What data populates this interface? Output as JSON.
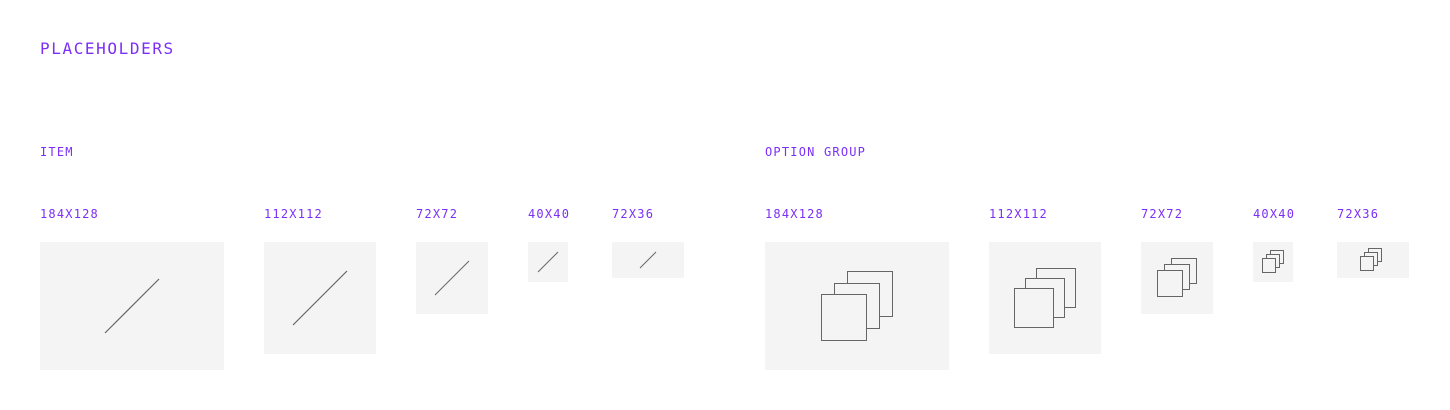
{
  "page": {
    "title": "PLACEHOLDERS",
    "accent_color": "#7b2ff7",
    "tile_color": "#f4f4f4",
    "stroke_color": "#666666"
  },
  "item": {
    "label": "ITEM",
    "icon": "diagonal-line-icon",
    "sizes": [
      "184X128",
      "112X112",
      "72X72",
      "40X40",
      "72X36"
    ]
  },
  "option_group": {
    "label": "OPTION GROUP",
    "icon": "stacked-squares-icon",
    "sizes": [
      "184X128",
      "112X112",
      "72X72",
      "40X40",
      "72X36"
    ]
  }
}
